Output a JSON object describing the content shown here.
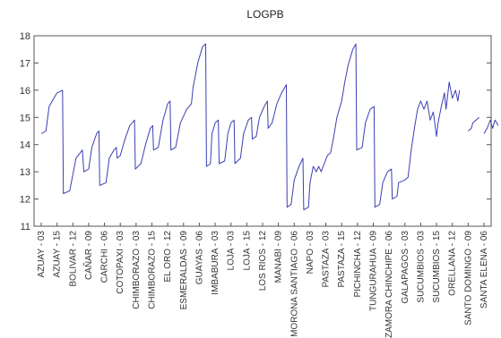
{
  "colors": {
    "line": "#3b3fb0",
    "frame": "#555555",
    "text": "#333333",
    "background": "#ffffff"
  },
  "chart_data": {
    "type": "line",
    "title": "LOGPB",
    "xlabel": "",
    "ylabel": "",
    "ylim": [
      11,
      18
    ],
    "yticks": [
      11,
      12,
      13,
      14,
      15,
      16,
      17,
      18
    ],
    "grid": false,
    "legend": "none",
    "categories": [
      "AZUAY - 03",
      "AZUAY - 15",
      "BOLIVAR - 12",
      "CAÑAR - 09",
      "CARCHI - 06",
      "COTOPAXI - 03",
      "CHIMBORAZO - 03",
      "CHIMBORAZO - 15",
      "EL ORO - 12",
      "ESMERALDAS - 09",
      "GUAYAS - 06",
      "IMBABURA - 03",
      "LOJA - 03",
      "LOJA - 15",
      "LOS RIOS - 12",
      "MANABI - 09",
      "MORONA SANTIAGO - 06",
      "NAPO - 03",
      "PASTAZA - 03",
      "PASTAZA - 15",
      "PICHINCHA - 12",
      "TUNGURAHUA - 09",
      "ZAMORA CHINCHIPE - 06",
      "GALAPAGOS - 03",
      "SUCUMBIOS - 03",
      "SUCUMBIOS - 15",
      "ORELLANA - 12",
      "SANTO DOMINGO - 09",
      "SANTA ELENA - 06"
    ],
    "series": [
      {
        "points": [
          [
            0,
            14.4
          ],
          [
            0.3,
            14.5
          ],
          [
            0.5,
            15.4
          ],
          [
            1.0,
            15.9
          ],
          [
            1.35,
            16.0
          ],
          [
            1.4,
            12.2
          ],
          [
            1.8,
            12.3
          ],
          [
            2.0,
            12.9
          ],
          [
            2.2,
            13.5
          ],
          [
            2.6,
            13.8
          ],
          [
            2.7,
            13.0
          ],
          [
            3.0,
            13.1
          ],
          [
            3.2,
            13.9
          ],
          [
            3.5,
            14.4
          ],
          [
            3.65,
            14.5
          ],
          [
            3.7,
            12.5
          ],
          [
            4.1,
            12.6
          ],
          [
            4.3,
            13.5
          ],
          [
            4.6,
            13.8
          ],
          [
            4.75,
            13.9
          ],
          [
            4.8,
            13.5
          ],
          [
            5.0,
            13.6
          ],
          [
            5.3,
            14.2
          ],
          [
            5.6,
            14.7
          ],
          [
            5.9,
            14.9
          ],
          [
            5.95,
            13.1
          ],
          [
            6.3,
            13.3
          ],
          [
            6.6,
            14.0
          ],
          [
            6.9,
            14.6
          ],
          [
            7.05,
            14.7
          ],
          [
            7.1,
            13.8
          ],
          [
            7.4,
            13.9
          ],
          [
            7.7,
            14.9
          ],
          [
            8.0,
            15.5
          ],
          [
            8.15,
            15.6
          ],
          [
            8.2,
            13.8
          ],
          [
            8.5,
            13.9
          ],
          [
            8.8,
            14.8
          ],
          [
            9.2,
            15.3
          ],
          [
            9.5,
            15.5
          ],
          [
            9.6,
            16.1
          ],
          [
            9.9,
            17.0
          ],
          [
            10.2,
            17.6
          ],
          [
            10.4,
            17.7
          ],
          [
            10.45,
            13.2
          ],
          [
            10.7,
            13.3
          ],
          [
            10.8,
            14.4
          ],
          [
            11.0,
            14.8
          ],
          [
            11.2,
            14.9
          ],
          [
            11.25,
            13.3
          ],
          [
            11.6,
            13.4
          ],
          [
            11.8,
            14.4
          ],
          [
            12.0,
            14.8
          ],
          [
            12.2,
            14.9
          ],
          [
            12.25,
            13.3
          ],
          [
            12.6,
            13.5
          ],
          [
            12.8,
            14.4
          ],
          [
            13.1,
            14.9
          ],
          [
            13.3,
            15.0
          ],
          [
            13.35,
            14.2
          ],
          [
            13.6,
            14.3
          ],
          [
            13.8,
            15.0
          ],
          [
            14.1,
            15.4
          ],
          [
            14.3,
            15.6
          ],
          [
            14.35,
            14.6
          ],
          [
            14.6,
            14.8
          ],
          [
            14.9,
            15.5
          ],
          [
            15.2,
            15.9
          ],
          [
            15.5,
            16.2
          ],
          [
            15.55,
            11.7
          ],
          [
            15.8,
            11.8
          ],
          [
            16.0,
            12.7
          ],
          [
            16.3,
            13.2
          ],
          [
            16.55,
            13.5
          ],
          [
            16.6,
            11.6
          ],
          [
            16.9,
            11.7
          ],
          [
            17.0,
            12.6
          ],
          [
            17.2,
            13.2
          ],
          [
            17.4,
            13.0
          ],
          [
            17.55,
            13.2
          ],
          [
            17.7,
            13.0
          ],
          [
            17.9,
            13.3
          ],
          [
            18.1,
            13.6
          ],
          [
            18.3,
            13.7
          ],
          [
            18.5,
            14.3
          ],
          [
            18.7,
            15.0
          ],
          [
            19.0,
            15.6
          ],
          [
            19.2,
            16.3
          ],
          [
            19.4,
            16.9
          ],
          [
            19.7,
            17.5
          ],
          [
            19.9,
            17.7
          ],
          [
            19.95,
            13.8
          ],
          [
            20.3,
            13.9
          ],
          [
            20.5,
            14.8
          ],
          [
            20.8,
            15.3
          ],
          [
            21.05,
            15.4
          ],
          [
            21.1,
            11.7
          ],
          [
            21.4,
            11.8
          ],
          [
            21.6,
            12.6
          ],
          [
            21.9,
            13.0
          ],
          [
            22.15,
            13.1
          ],
          [
            22.2,
            12.0
          ],
          [
            22.5,
            12.1
          ],
          [
            22.6,
            12.6
          ],
          [
            23.0,
            12.7
          ],
          [
            23.2,
            12.8
          ],
          [
            23.4,
            13.8
          ],
          [
            23.6,
            14.6
          ],
          [
            23.8,
            15.3
          ],
          [
            24.0,
            15.6
          ],
          [
            24.2,
            15.3
          ],
          [
            24.4,
            15.6
          ],
          [
            24.6,
            14.9
          ],
          [
            24.8,
            15.2
          ],
          [
            25.0,
            14.3
          ],
          [
            25.1,
            14.8
          ],
          [
            25.3,
            15.4
          ],
          [
            25.5,
            15.9
          ],
          [
            25.6,
            15.3
          ],
          [
            25.8,
            16.3
          ],
          [
            26.0,
            15.7
          ],
          [
            26.2,
            16.0
          ],
          [
            26.35,
            15.6
          ],
          [
            26.45,
            16.0
          ]
        ]
      },
      {
        "points": [
          [
            27.0,
            14.5
          ],
          [
            27.2,
            14.6
          ],
          [
            27.3,
            14.8
          ],
          [
            27.5,
            14.9
          ],
          [
            27.7,
            15.0
          ]
        ]
      },
      {
        "points": [
          [
            28.0,
            14.4
          ],
          [
            28.2,
            14.6
          ],
          [
            28.4,
            14.9
          ],
          [
            28.55,
            14.6
          ],
          [
            28.7,
            14.9
          ],
          [
            28.9,
            14.7
          ]
        ]
      }
    ]
  }
}
